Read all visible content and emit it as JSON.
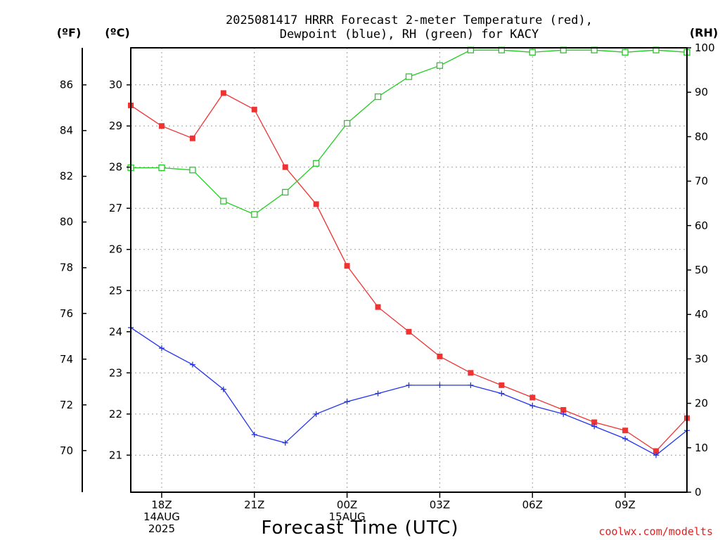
{
  "title_line1": "2025081417 HRRR Forecast 2-meter Temperature (red),",
  "title_line2": "Dewpoint (blue), RH (green) for KACY",
  "units": {
    "f": "(ºF)",
    "c": "(ºC)",
    "rh": "(RH)"
  },
  "xlabel": "Forecast Time (UTC)",
  "credit": "coolwx.com/modelts",
  "colors": {
    "temp": "#ee3333",
    "dewpoint": "#2233ee",
    "rh": "#22cc22"
  },
  "chart_data": {
    "type": "line",
    "title": "2025081417 HRRR Forecast 2-meter Temperature (red), Dewpoint (blue), RH (green) for KACY",
    "xlabel": "Forecast Time (UTC)",
    "x_hours_utc": [
      17,
      18,
      19,
      20,
      21,
      22,
      23,
      24,
      25,
      26,
      27,
      28,
      29,
      30,
      31,
      32,
      33,
      34,
      35
    ],
    "x_ticks": [
      {
        "hour": 18,
        "lines": [
          "18Z",
          "14AUG",
          "2025"
        ]
      },
      {
        "hour": 21,
        "lines": [
          "21Z"
        ]
      },
      {
        "hour": 24,
        "lines": [
          "00Z",
          "15AUG"
        ]
      },
      {
        "hour": 27,
        "lines": [
          "03Z"
        ]
      },
      {
        "hour": 30,
        "lines": [
          "06Z"
        ]
      },
      {
        "hour": 33,
        "lines": [
          "09Z"
        ]
      }
    ],
    "xlim": [
      17,
      35
    ],
    "y_celsius_ticks": [
      21,
      22,
      23,
      24,
      25,
      26,
      27,
      28,
      29,
      30
    ],
    "y_fahrenheit_ticks": [
      70,
      72,
      74,
      76,
      78,
      80,
      82,
      84,
      86
    ],
    "y_rh_ticks": [
      0,
      10,
      20,
      30,
      40,
      50,
      60,
      70,
      80,
      90,
      100
    ],
    "ylim_celsius": [
      20.1,
      30.9
    ],
    "ylim_rh": [
      0,
      100
    ],
    "grid": true,
    "series": [
      {
        "name": "Temperature",
        "axis": "celsius",
        "key": "temp",
        "marker": "filled-square",
        "values": [
          29.5,
          29.0,
          28.7,
          29.8,
          29.4,
          28.0,
          27.1,
          25.6,
          24.6,
          24.0,
          23.4,
          23.0,
          22.7,
          22.4,
          22.1,
          21.8,
          21.6,
          21.1,
          21.9
        ]
      },
      {
        "name": "Dewpoint",
        "axis": "celsius",
        "key": "dewpoint",
        "marker": "plus",
        "values": [
          24.1,
          23.6,
          23.2,
          22.6,
          21.5,
          21.3,
          22.0,
          22.3,
          22.5,
          22.7,
          22.7,
          22.7,
          22.5,
          22.2,
          22.0,
          21.7,
          21.4,
          21.0,
          21.6
        ]
      },
      {
        "name": "RH",
        "axis": "rh",
        "key": "rh",
        "marker": "open-square",
        "values": [
          73,
          73,
          72.5,
          65.5,
          62.5,
          67.5,
          74,
          83,
          89,
          93.5,
          96,
          99.5,
          99.5,
          99,
          99.5,
          99.5,
          99,
          99.5,
          99
        ]
      }
    ]
  }
}
